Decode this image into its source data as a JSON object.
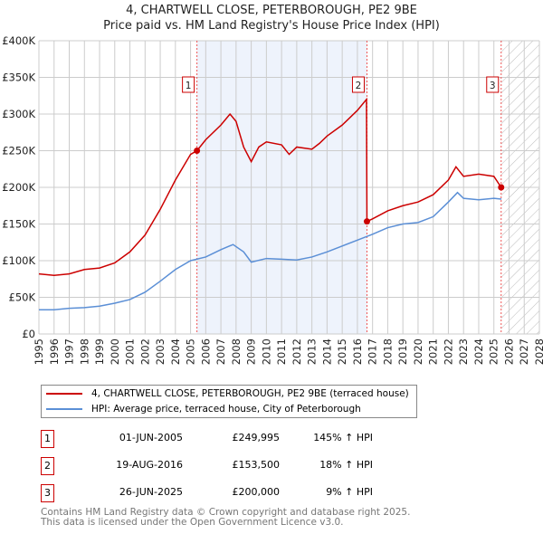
{
  "title": "4, CHARTWELL CLOSE, PETERBOROUGH, PE2 9BE",
  "subtitle": "Price paid vs. HM Land Registry's House Price Index (HPI)",
  "chart_data": {
    "type": "line",
    "xlim": [
      1995,
      2028
    ],
    "ylim": [
      0,
      400000
    ],
    "yticks": [
      0,
      50000,
      100000,
      150000,
      200000,
      250000,
      300000,
      350000,
      400000
    ],
    "ytick_labels": [
      "£0",
      "£50K",
      "£100K",
      "£150K",
      "£200K",
      "£250K",
      "£300K",
      "£350K",
      "£400K"
    ],
    "xticks": [
      1995,
      1996,
      1997,
      1998,
      1999,
      2000,
      2001,
      2002,
      2003,
      2004,
      2005,
      2006,
      2007,
      2008,
      2009,
      2010,
      2011,
      2012,
      2013,
      2014,
      2015,
      2016,
      2017,
      2018,
      2019,
      2020,
      2021,
      2022,
      2023,
      2024,
      2025,
      2026,
      2027,
      2028
    ],
    "shaded_range": [
      2005.42,
      2016.63
    ],
    "hatched_from": 2025.48,
    "series": [
      {
        "name": "4, CHARTWELL CLOSE, PETERBOROUGH, PE2 9BE (terraced house)",
        "color": "#cc0000",
        "x": [
          1995,
          1996,
          1997,
          1998,
          1999,
          2000,
          2001,
          2002,
          2003,
          2004,
          2005,
          2005.42,
          2006,
          2007,
          2007.6,
          2008,
          2008.5,
          2009,
          2009.5,
          2010,
          2011,
          2011.5,
          2012,
          2013,
          2013.5,
          2014,
          2015,
          2016,
          2016.6,
          2016.63,
          2017,
          2018,
          2019,
          2020,
          2021,
          2022,
          2022.5,
          2023,
          2024,
          2025,
          2025.48
        ],
        "y": [
          82000,
          80000,
          82000,
          88000,
          90000,
          97000,
          112000,
          135000,
          170000,
          210000,
          245000,
          250000,
          265000,
          285000,
          300000,
          290000,
          255000,
          235000,
          255000,
          262000,
          258000,
          245000,
          255000,
          252000,
          260000,
          270000,
          285000,
          305000,
          320000,
          153500,
          157000,
          168000,
          175000,
          180000,
          190000,
          210000,
          228000,
          215000,
          218000,
          215000,
          200000
        ]
      },
      {
        "name": "HPI: Average price, terraced house, City of Peterborough",
        "color": "#5b8fd6",
        "x": [
          1995,
          1996,
          1997,
          1998,
          1999,
          2000,
          2001,
          2002,
          2003,
          2004,
          2005,
          2006,
          2007,
          2007.8,
          2008.5,
          2009,
          2010,
          2011,
          2012,
          2013,
          2014,
          2015,
          2016,
          2017,
          2018,
          2019,
          2020,
          2021,
          2022,
          2022.6,
          2023,
          2024,
          2025,
          2025.5
        ],
        "y": [
          33000,
          33000,
          35000,
          36000,
          38000,
          42000,
          47000,
          57000,
          72000,
          88000,
          100000,
          105000,
          115000,
          122000,
          112000,
          98000,
          103000,
          102000,
          101000,
          105000,
          112000,
          120000,
          128000,
          136000,
          145000,
          150000,
          152000,
          160000,
          180000,
          193000,
          185000,
          183000,
          185000,
          184000
        ]
      }
    ],
    "sales": [
      {
        "label": "1",
        "x": 2005.42,
        "y": 249995,
        "date": "01-JUN-2005",
        "price": "£249,995",
        "hpi": "145% ↑ HPI"
      },
      {
        "label": "2",
        "x": 2016.63,
        "y": 153500,
        "date": "19-AUG-2016",
        "price": "£153,500",
        "hpi": "18% ↑ HPI"
      },
      {
        "label": "3",
        "x": 2025.48,
        "y": 200000,
        "date": "26-JUN-2025",
        "price": "£200,000",
        "hpi": "9% ↑ HPI"
      }
    ]
  },
  "footer": [
    "Contains HM Land Registry data © Crown copyright and database right 2025.",
    "This data is licensed under the Open Government Licence v3.0."
  ]
}
